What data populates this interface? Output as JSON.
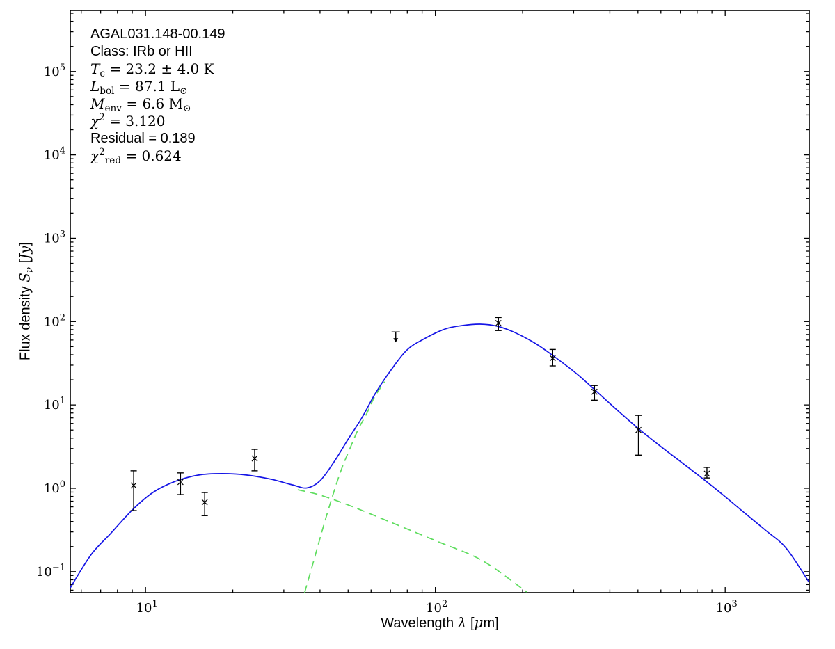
{
  "figure": {
    "background": "#ffffff",
    "frame_color": "#000000"
  },
  "annotation": {
    "lines": [
      {
        "style": "sans",
        "segs": [
          [
            "AGAL031.148-00.149",
            ""
          ]
        ]
      },
      {
        "style": "sans",
        "segs": [
          [
            "Class: IRb or HII",
            ""
          ]
        ]
      },
      {
        "style": "math",
        "segs": [
          [
            "T",
            "i"
          ],
          [
            "c",
            "sub"
          ],
          [
            " = 23.2 ± 4.0 K",
            ""
          ]
        ]
      },
      {
        "style": "math",
        "segs": [
          [
            "L",
            "i"
          ],
          [
            "bol",
            "sub"
          ],
          [
            " = 87.1 L",
            ""
          ],
          [
            "⊙",
            "sub"
          ]
        ]
      },
      {
        "style": "math",
        "segs": [
          [
            "M",
            "i"
          ],
          [
            "env",
            "sub"
          ],
          [
            " = 6.6 M",
            ""
          ],
          [
            "⊙",
            "sub"
          ]
        ]
      },
      {
        "style": "math",
        "segs": [
          [
            "χ",
            "i"
          ],
          [
            "2",
            "sup"
          ],
          [
            " = 3.120",
            ""
          ]
        ]
      },
      {
        "style": "sans",
        "segs": [
          [
            "Residual = 0.189",
            ""
          ]
        ]
      },
      {
        "style": "math",
        "segs": [
          [
            "χ",
            "i"
          ],
          [
            "2",
            "sup"
          ],
          [
            "red",
            "sub"
          ],
          [
            " = 0.624",
            ""
          ]
        ]
      }
    ]
  },
  "axes": {
    "xlabel_segs": [
      [
        "Wavelength ",
        ""
      ],
      [
        "λ",
        "i"
      ],
      [
        " [",
        ""
      ],
      [
        "μ",
        "i"
      ],
      [
        "m]",
        ""
      ]
    ],
    "ylabel_segs": [
      [
        "Flux density ",
        ""
      ],
      [
        "S",
        "i"
      ],
      [
        "ν",
        "i sub"
      ],
      [
        " [",
        ""
      ],
      [
        "Jy",
        "i"
      ],
      [
        "]",
        ""
      ]
    ]
  },
  "chart_data": {
    "type": "line",
    "title": "",
    "xlabel": "Wavelength λ [μm]",
    "ylabel": "Flux density Sν [Jy]",
    "xscale": "log",
    "yscale": "log",
    "xlim": [
      5.5,
      1950
    ],
    "ylim": [
      0.056,
      540000
    ],
    "grid": false,
    "legend": false,
    "x_major_ticks": [
      10,
      100,
      1000
    ],
    "y_major_ticks": [
      0.1,
      1,
      10,
      100,
      1000,
      10000,
      100000
    ],
    "series": [
      {
        "name": "cold-component-model",
        "color": "#5fdd5f",
        "style": "dashed",
        "points": [
          [
            35.4,
            0.056
          ],
          [
            37.8,
            0.125
          ],
          [
            41.1,
            0.35
          ],
          [
            43.9,
            0.75
          ],
          [
            47.2,
            1.62
          ],
          [
            50.7,
            2.99
          ],
          [
            54.2,
            5.12
          ],
          [
            57.9,
            7.81
          ],
          [
            61.5,
            12.2
          ],
          [
            66.8,
            19.0
          ]
        ]
      },
      {
        "name": "warm-component-model",
        "color": "#5fdd5f",
        "style": "dashed",
        "points": [
          [
            33.5,
            0.96
          ],
          [
            40.0,
            0.83
          ],
          [
            51.3,
            0.61
          ],
          [
            72.3,
            0.375
          ],
          [
            102.4,
            0.228
          ],
          [
            145.1,
            0.136
          ],
          [
            206.6,
            0.057
          ]
        ]
      },
      {
        "name": "total-model",
        "color": "#1414e6",
        "style": "solid",
        "points": [
          [
            5.5,
            0.064
          ],
          [
            6.5,
            0.161
          ],
          [
            7.6,
            0.29
          ],
          [
            9.0,
            0.55
          ],
          [
            10.6,
            0.89
          ],
          [
            12.5,
            1.19
          ],
          [
            15.2,
            1.44
          ],
          [
            18.4,
            1.5
          ],
          [
            22.4,
            1.44
          ],
          [
            27.2,
            1.28
          ],
          [
            32.1,
            1.1
          ],
          [
            36.0,
            1.01
          ],
          [
            40.0,
            1.23
          ],
          [
            44.7,
            2.07
          ],
          [
            49.9,
            3.84
          ],
          [
            55.7,
            6.96
          ],
          [
            62.2,
            13.9
          ],
          [
            70.3,
            26.2
          ],
          [
            79.8,
            45.7
          ],
          [
            91.6,
            62.2
          ],
          [
            108,
            81.4
          ],
          [
            124,
            89.6
          ],
          [
            142.6,
            93.1
          ],
          [
            163.7,
            87.9
          ],
          [
            187.9,
            73.9
          ],
          [
            221.8,
            54.4
          ],
          [
            261.8,
            36.3
          ],
          [
            309,
            23.3
          ],
          [
            364.8,
            13.9
          ],
          [
            430.5,
            8.27
          ],
          [
            508.2,
            5.02
          ],
          [
            599.8,
            3.17
          ],
          [
            708,
            2.04
          ],
          [
            835.6,
            1.31
          ],
          [
            986.3,
            0.825
          ],
          [
            1164,
            0.51
          ],
          [
            1374,
            0.316
          ],
          [
            1622,
            0.192
          ],
          [
            1946,
            0.075
          ]
        ]
      }
    ],
    "data_points": [
      {
        "lambda": 9.1,
        "flux": 1.08,
        "err_hi": 0.54,
        "err_lo": 0.54
      },
      {
        "lambda": 13.2,
        "flux": 1.19,
        "err_hi": 0.34,
        "err_lo": 0.35
      },
      {
        "lambda": 16.0,
        "flux": 0.68,
        "err_hi": 0.21,
        "err_lo": 0.21
      },
      {
        "lambda": 23.8,
        "flux": 2.28,
        "err_hi": 0.65,
        "err_lo": 0.66
      },
      {
        "lambda": 73,
        "flux": 75,
        "upper_limit": true
      },
      {
        "lambda": 165,
        "flux": 96,
        "err_hi": 16,
        "err_lo": 18
      },
      {
        "lambda": 254,
        "flux": 36.4,
        "err_hi": 9.9,
        "err_lo": 7.0
      },
      {
        "lambda": 354,
        "flux": 14.4,
        "err_hi": 2.7,
        "err_lo": 3.0
      },
      {
        "lambda": 502,
        "flux": 5.0,
        "err_hi": 2.5,
        "err_lo": 2.5
      },
      {
        "lambda": 865,
        "flux": 1.5,
        "err_hi": 0.28,
        "err_lo": 0.17
      }
    ]
  }
}
